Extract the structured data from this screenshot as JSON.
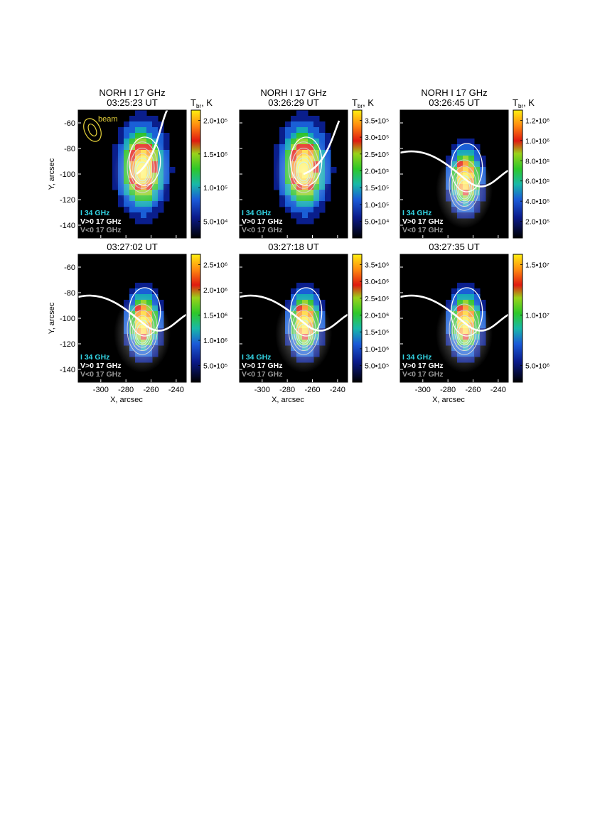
{
  "figure": {
    "header_title": "NORH I 17 GHz",
    "colorbar_title": "T",
    "colorbar_sub": "br",
    "colorbar_unit": ", K",
    "y_axis_label": "Y, arcsec",
    "x_axis_label": "X, arcsec",
    "y_ticks": [
      "-60",
      "-80",
      "-100",
      "-120",
      "-140"
    ],
    "x_ticks": [
      "-300",
      "-280",
      "-260",
      "-240"
    ],
    "beam_label": "beam",
    "legend": [
      {
        "text": "I 34 GHz",
        "color": "#33d6e6"
      },
      {
        "text": "V>0 17 GHz",
        "color": "#ffffff"
      },
      {
        "text": "V<0 17 GHz",
        "color": "#9a9a9a"
      }
    ],
    "panels": [
      {
        "time": "03:25:23 UT",
        "header": true,
        "cb_ticks": [
          "2.0•10⁵",
          "1.5•10⁵",
          "1.0•10⁵",
          "5.0•10⁴"
        ]
      },
      {
        "time": "03:26:29 UT",
        "header": true,
        "cb_ticks": [
          "3.5•10⁵",
          "3.0•10⁵",
          "2.5•10⁵",
          "2.0•10⁵",
          "1.5•10⁵",
          "1.0•10⁵",
          "5.0•10⁴"
        ]
      },
      {
        "time": "03:26:45 UT",
        "header": true,
        "cb_ticks": [
          "1.2•10⁶",
          "1.0•10⁶",
          "8.0•10⁵",
          "6.0•10⁵",
          "4.0•10⁵",
          "2.0•10⁵"
        ]
      },
      {
        "time": "03:27:02 UT",
        "header": false,
        "cb_ticks": [
          "2.5•10⁶",
          "2.0•10⁶",
          "1.5•10⁶",
          "1.0•10⁶",
          "5.0•10⁵"
        ]
      },
      {
        "time": "03:27:18 UT",
        "header": false,
        "cb_ticks": [
          "3.5•10⁶",
          "3.0•10⁶",
          "2.5•10⁶",
          "2.0•10⁶",
          "1.5•10⁶",
          "1.0•10⁶",
          "5.0•10⁵"
        ]
      },
      {
        "time": "03:27:35 UT",
        "header": false,
        "cb_ticks": [
          "1.5•10⁷",
          "1.0•10⁷",
          "5.0•10⁶"
        ]
      }
    ]
  }
}
